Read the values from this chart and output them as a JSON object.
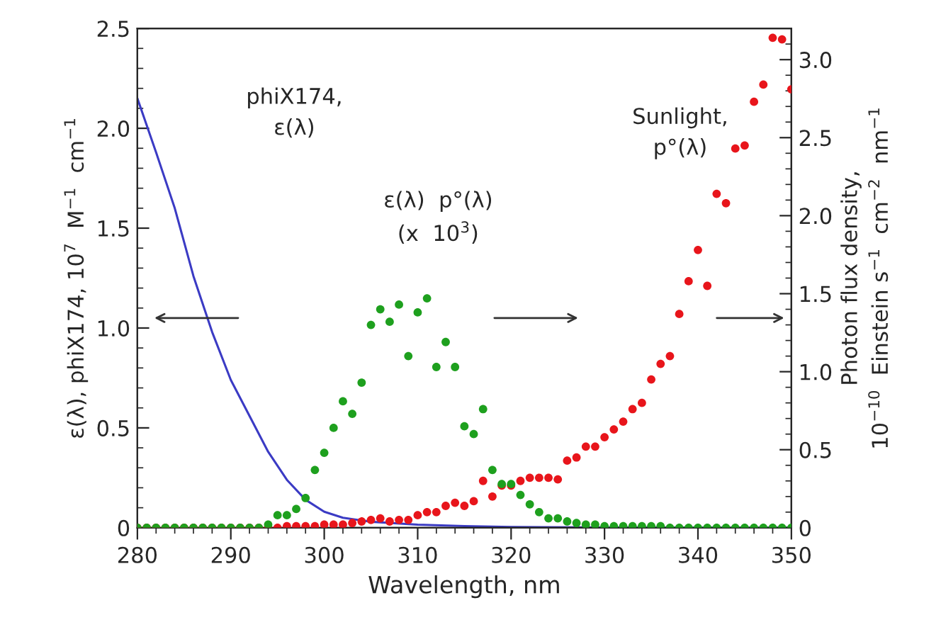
{
  "chart_data": {
    "type": "scatter",
    "xlabel": "Wavelength, nm",
    "ylabel": "ε(λ), phiX174, 10$^{7}$  M$^{−1}$  cm$^{−1}$",
    "y2label": "Photon flux density,\n10$^{−10}$  Einstein s$^{−1}$  cm$^{−2}$  nm$^{−1}$",
    "xlim": [
      280,
      350
    ],
    "xticks": [
      280,
      290,
      300,
      310,
      320,
      330,
      340,
      350
    ],
    "ylim": [
      0,
      2.5
    ],
    "yticks": [
      0,
      {
        "value": 0.5,
        "label": "0.5"
      },
      {
        "value": 1,
        "label": "1.0"
      },
      {
        "value": 1.5,
        "label": "1.5"
      },
      {
        "value": 2,
        "label": "2.0"
      },
      {
        "value": 2.5,
        "label": "2.5"
      }
    ],
    "y2lim": [
      0,
      3.2
    ],
    "y2ticks": [
      0,
      {
        "value": 0.5,
        "label": "0.5"
      },
      {
        "value": 1,
        "label": "1.0"
      },
      {
        "value": 1.5,
        "label": "1.5"
      },
      {
        "value": 2,
        "label": "2.0"
      },
      {
        "value": 2.5,
        "label": "2.5"
      },
      {
        "value": 3,
        "label": "3.0"
      }
    ],
    "grid": false,
    "legend": false,
    "annotations": [
      "phiX174,\nε(λ)",
      "ε(λ)  p°(λ)\n(x  10$^{3}$)",
      "Sunlight,\np°(λ)"
    ],
    "series": [
      {
        "type": "line",
        "axis": "y",
        "color": "#3b3bc4",
        "x": [
          280,
          282,
          284,
          286,
          288,
          290,
          292,
          294,
          296,
          298,
          300,
          302,
          305,
          310,
          315,
          320,
          330,
          350
        ],
        "values": [
          2.15,
          1.88,
          1.6,
          1.26,
          0.98,
          0.74,
          0.56,
          0.38,
          0.24,
          0.14,
          0.08,
          0.05,
          0.03,
          0.015,
          0.008,
          0.004,
          0.001,
          0
        ]
      },
      {
        "axis": "y2",
        "marker": "circle",
        "color": "#e8151b",
        "x": [
          280,
          281,
          282,
          283,
          284,
          285,
          286,
          287,
          288,
          289,
          290,
          291,
          292,
          293,
          294,
          295,
          296,
          297,
          298,
          299,
          300,
          301,
          302,
          303,
          304,
          305,
          306,
          307,
          308,
          309,
          310,
          311,
          312,
          313,
          314,
          315,
          316,
          317,
          318,
          319,
          320,
          321,
          322,
          323,
          324,
          325,
          326,
          327,
          328,
          329,
          330,
          331,
          332,
          333,
          334,
          335,
          336,
          337,
          338,
          339,
          340,
          341,
          342,
          343,
          344,
          345,
          346,
          347,
          348,
          349,
          350
        ],
        "values": [
          0,
          0,
          0,
          0,
          0,
          0,
          0,
          0,
          0,
          0,
          0,
          0,
          0,
          0,
          0,
          0,
          0.01,
          0.01,
          0.01,
          0.01,
          0.02,
          0.02,
          0.02,
          0.03,
          0.04,
          0.05,
          0.06,
          0.04,
          0.05,
          0.05,
          0.08,
          0.1,
          0.1,
          0.14,
          0.16,
          0.14,
          0.17,
          0.3,
          0.2,
          0.27,
          0.27,
          0.3,
          0.32,
          0.32,
          0.32,
          0.31,
          0.43,
          0.45,
          0.52,
          0.52,
          0.58,
          0.63,
          0.68,
          0.76,
          0.8,
          0.95,
          1.05,
          1.1,
          1.37,
          1.58,
          1.78,
          1.55,
          2.14,
          2.08,
          2.43,
          2.45,
          2.73,
          2.84,
          3.14,
          3.13,
          2.81
        ]
      },
      {
        "axis": "y2",
        "marker": "circle",
        "color": "#1ea01e",
        "x": [
          280,
          281,
          282,
          283,
          284,
          285,
          286,
          287,
          288,
          289,
          290,
          291,
          292,
          293,
          294,
          295,
          296,
          297,
          298,
          299,
          300,
          301,
          302,
          303,
          304,
          305,
          306,
          307,
          308,
          309,
          310,
          311,
          312,
          313,
          314,
          315,
          316,
          317,
          318,
          319,
          320,
          321,
          322,
          323,
          324,
          325,
          326,
          327,
          328,
          329,
          330,
          331,
          332,
          333,
          334,
          335,
          336,
          337,
          338,
          339,
          340,
          341,
          342,
          343,
          344,
          345,
          346,
          347,
          348,
          349,
          350
        ],
        "values": [
          0,
          0,
          0,
          0,
          0,
          0,
          0,
          0,
          0,
          0,
          0,
          0,
          0,
          0,
          0.02,
          0.08,
          0.08,
          0.12,
          0.19,
          0.37,
          0.48,
          0.64,
          0.81,
          0.73,
          0.93,
          1.3,
          1.4,
          1.32,
          1.43,
          1.1,
          1.38,
          1.47,
          1.03,
          1.19,
          1.03,
          0.65,
          0.6,
          0.76,
          0.37,
          0.28,
          0.28,
          0.21,
          0.15,
          0.1,
          0.06,
          0.06,
          0.04,
          0.03,
          0.02,
          0.02,
          0.01,
          0.01,
          0.01,
          0.01,
          0.01,
          0.01,
          0.01,
          0,
          0,
          0,
          0,
          0,
          0,
          0,
          0,
          0,
          0,
          0,
          0,
          0,
          0
        ]
      }
    ]
  }
}
